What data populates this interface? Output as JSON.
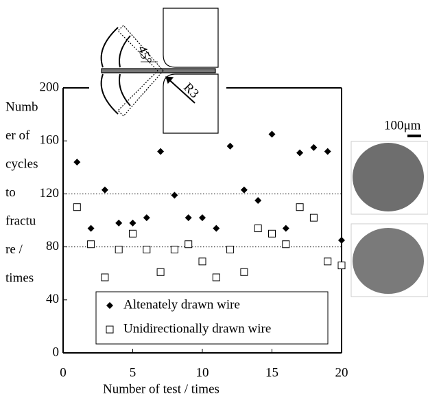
{
  "chart_data": {
    "type": "scatter",
    "y_label_lines": [
      "Numb",
      "er of",
      "cycles",
      "to",
      "fractu",
      "re /",
      "times"
    ],
    "x_label": "Number of test / times",
    "annotations": [
      "45°",
      "R3",
      "100μm"
    ],
    "xlim": [
      0,
      20
    ],
    "xticks": [
      0,
      5,
      10,
      15,
      20
    ],
    "ylim": [
      0,
      200
    ],
    "yticks": [
      0,
      40,
      80,
      120,
      160,
      200
    ],
    "hlines": [
      80,
      120
    ],
    "series": [
      {
        "name": "Altenately drawn wire",
        "marker": "diamond",
        "color": "#000000",
        "x": [
          1,
          2,
          3,
          4,
          5,
          6,
          7,
          8,
          9,
          10,
          11,
          12,
          13,
          14,
          15,
          16,
          17,
          18,
          19,
          20
        ],
        "values": [
          144,
          94,
          123,
          98,
          98,
          102,
          152,
          119,
          102,
          102,
          94,
          156,
          123,
          115,
          165,
          94,
          151,
          155,
          152,
          85
        ]
      },
      {
        "name": "Unidirectionally drawn wire",
        "marker": "square",
        "color": "#000000",
        "x": [
          1,
          2,
          3,
          4,
          5,
          6,
          7,
          8,
          9,
          10,
          11,
          12,
          13,
          14,
          15,
          16,
          17,
          18,
          19,
          20
        ],
        "values": [
          110,
          82,
          57,
          78,
          90,
          78,
          61,
          78,
          82,
          69,
          57,
          78,
          61,
          94,
          90,
          82,
          110,
          102,
          69,
          66
        ]
      }
    ]
  }
}
